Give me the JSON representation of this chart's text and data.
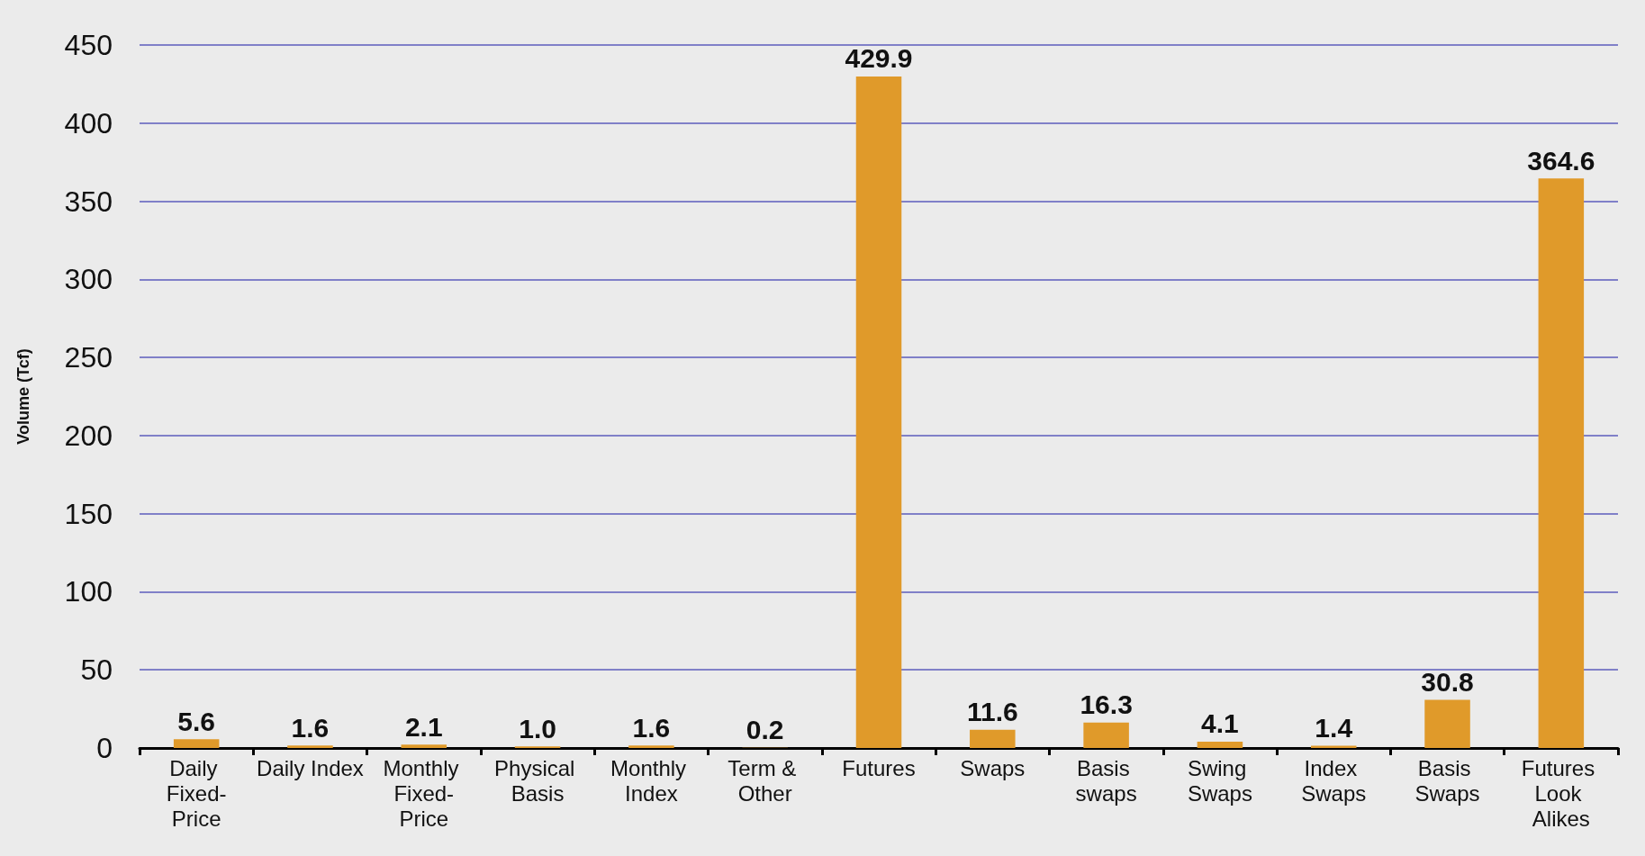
{
  "chart_data": {
    "type": "bar",
    "ylabel": "Volume (Tcf)",
    "categories": [
      "Daily Fixed-Price",
      "Daily Index",
      "Monthly Fixed-Price",
      "Physical Basis",
      "Monthly Index",
      "Term & Other",
      "Futures",
      "Swaps",
      "Basis swaps",
      "Swing Swaps",
      "Index Swaps",
      "Basis Swaps",
      "Futures Look Alikes"
    ],
    "values": [
      5.6,
      1.6,
      2.1,
      1.0,
      1.6,
      0.2,
      429.9,
      11.6,
      16.3,
      4.1,
      1.4,
      30.8,
      364.6
    ],
    "value_labels": [
      "5.6",
      "1.6",
      "2.1",
      "1.0",
      "1.6",
      "0.2",
      "429.9",
      "11.6",
      "16.3",
      "4.1",
      "1.4",
      "30.8",
      "364.6"
    ],
    "color": "#e09a2a",
    "ylim": [
      0,
      450
    ],
    "yticks": [
      0,
      50,
      100,
      150,
      200,
      250,
      300,
      350,
      400,
      450
    ],
    "grid": "y"
  }
}
